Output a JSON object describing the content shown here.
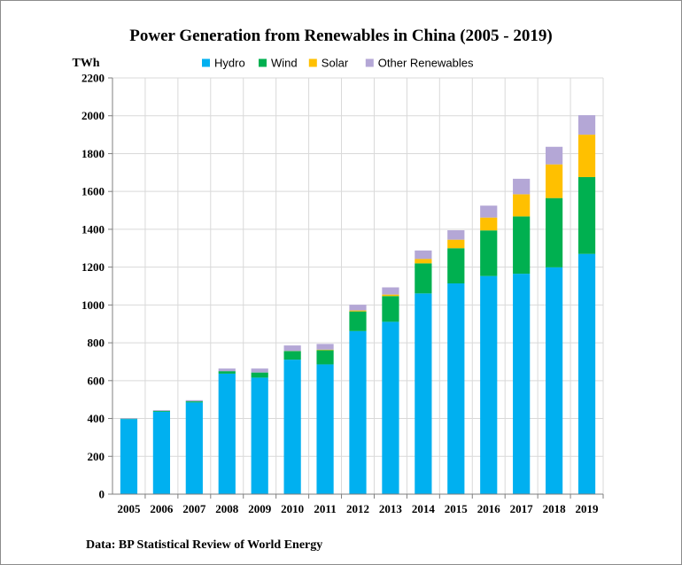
{
  "chart_data": {
    "type": "bar",
    "stacked": true,
    "title": "Power Generation from Renewables in China (2005 - 2019)",
    "ylabel": "TWh",
    "xlabel": "",
    "source": "Data: BP Statistical Review of World Energy",
    "ylim": [
      0,
      2200
    ],
    "yticks": [
      0,
      200,
      400,
      600,
      800,
      1000,
      1200,
      1400,
      1600,
      1800,
      2000,
      2200
    ],
    "grid": true,
    "legend_position": "top",
    "categories": [
      "2005",
      "2006",
      "2007",
      "2008",
      "2009",
      "2010",
      "2011",
      "2012",
      "2013",
      "2014",
      "2015",
      "2016",
      "2017",
      "2018",
      "2019"
    ],
    "series": [
      {
        "name": "Hydro",
        "color": "#00b0f0",
        "values": [
          397,
          436,
          485,
          637,
          616,
          711,
          686,
          862,
          911,
          1061,
          1114,
          1153,
          1165,
          1199,
          1270
        ]
      },
      {
        "name": "Wind",
        "color": "#00b050",
        "values": [
          2,
          4,
          6,
          13,
          27,
          45,
          75,
          104,
          136,
          159,
          186,
          241,
          303,
          366,
          406
        ]
      },
      {
        "name": "Solar",
        "color": "#ffc000",
        "values": [
          0,
          0,
          0,
          0,
          0,
          1,
          3,
          5,
          8,
          23,
          45,
          68,
          117,
          178,
          224
        ]
      },
      {
        "name": "Other Renewables",
        "color": "#b4a7d6",
        "values": [
          3,
          4,
          6,
          14,
          21,
          29,
          30,
          30,
          38,
          45,
          50,
          63,
          82,
          93,
          103
        ]
      }
    ]
  }
}
